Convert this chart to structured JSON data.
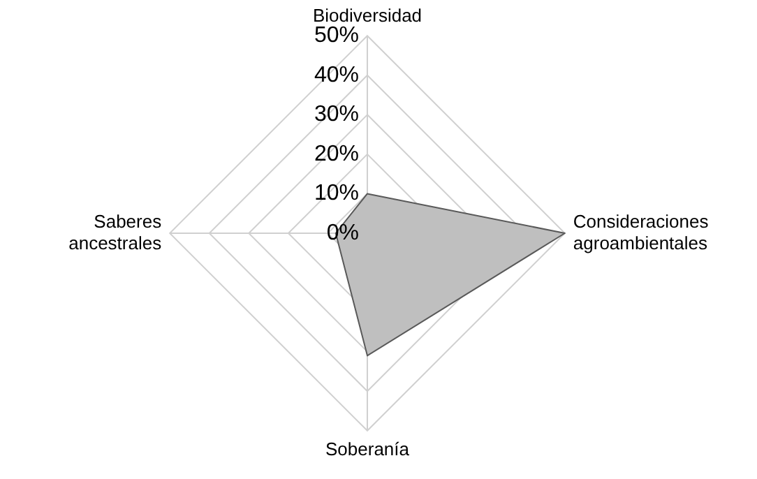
{
  "chart_data": {
    "type": "radar",
    "categories": [
      "Biodiversidad",
      "Consideraciones agroambientales",
      "Soberanía",
      "Saberes ancestrales"
    ],
    "series": [
      {
        "color": "#bfbfbf",
        "values": [
          10,
          50,
          31,
          8
        ]
      }
    ],
    "ylim": [
      0,
      50
    ],
    "yticks": [
      {
        "value": 0,
        "label": "0%"
      },
      {
        "value": 10,
        "label": "10%"
      },
      {
        "value": 20,
        "label": "20%"
      },
      {
        "value": 30,
        "label": "30%"
      },
      {
        "value": 40,
        "label": "40%"
      },
      {
        "value": 50,
        "label": "50%"
      }
    ],
    "grid": true,
    "legend": false,
    "marker": "none"
  }
}
